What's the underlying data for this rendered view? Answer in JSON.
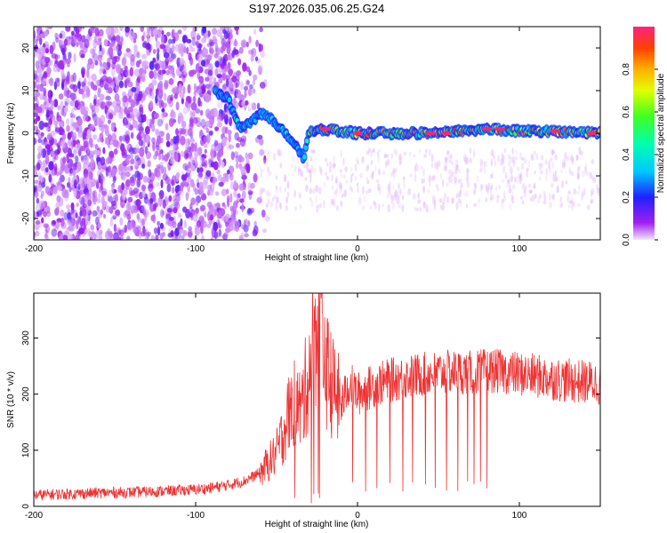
{
  "title": "S197.2026.035.06.25.G24",
  "chart_data": [
    {
      "type": "heatmap",
      "title": "S197.2026.035.06.25.G24",
      "xlabel": "Height of straight line (km)",
      "ylabel": "Frequency (Hz)",
      "xlim": [
        -200,
        150
      ],
      "ylim": [
        -25,
        25
      ],
      "xticks": [
        -200,
        -100,
        0,
        100
      ],
      "xtick_labels": [
        "-200",
        "-100",
        "0",
        "100"
      ],
      "yticks": [
        -20,
        -10,
        0,
        10,
        20
      ],
      "ytick_labels": [
        "-20",
        "-10",
        "0",
        "10",
        "20"
      ],
      "colorbar": {
        "label": "Normalized spectral amplitude",
        "range": [
          0,
          1
        ],
        "ticks": [
          0.0,
          0.2,
          0.4,
          0.6,
          0.8
        ],
        "tick_labels": [
          "0.0",
          "0.2",
          "0.4",
          "0.6",
          "0.8"
        ]
      },
      "ridge": [
        {
          "x": -88,
          "y": 10
        },
        {
          "x": -80,
          "y": 8
        },
        {
          "x": -72,
          "y": 1
        },
        {
          "x": -58,
          "y": 5
        },
        {
          "x": -50,
          "y": 2
        },
        {
          "x": -40,
          "y": -2
        },
        {
          "x": -33,
          "y": -6
        },
        {
          "x": -30,
          "y": 0.5
        },
        {
          "x": -20,
          "y": 1
        },
        {
          "x": -10,
          "y": 0.5
        },
        {
          "x": 0,
          "y": 0
        },
        {
          "x": 20,
          "y": 0
        },
        {
          "x": 40,
          "y": 0
        },
        {
          "x": 60,
          "y": 0.5
        },
        {
          "x": 80,
          "y": 1
        },
        {
          "x": 100,
          "y": 0.5
        },
        {
          "x": 120,
          "y": 0.5
        },
        {
          "x": 150,
          "y": 0
        }
      ],
      "noise_region_x": [
        -200,
        -70
      ]
    },
    {
      "type": "line",
      "xlabel": "Height of straight line (km)",
      "ylabel": "SNR (10 * v/v)",
      "xlim": [
        -200,
        150
      ],
      "ylim": [
        0,
        380
      ],
      "xticks": [
        -200,
        -100,
        0,
        100
      ],
      "xtick_labels": [
        "-200",
        "-100",
        "0",
        "100"
      ],
      "yticks": [
        0,
        100,
        200,
        300
      ],
      "ytick_labels": [
        "0",
        "100",
        "200",
        "300"
      ],
      "series": [
        {
          "name": "SNR",
          "color": "#ee3333",
          "x": [
            -200,
            -180,
            -160,
            -140,
            -120,
            -100,
            -90,
            -80,
            -70,
            -60,
            -50,
            -45,
            -40,
            -35,
            -30,
            -25,
            -22,
            -20,
            -15,
            -10,
            -5,
            0,
            10,
            20,
            30,
            40,
            50,
            60,
            70,
            80,
            90,
            100,
            110,
            120,
            130,
            140,
            150
          ],
          "y": [
            20,
            22,
            24,
            25,
            27,
            30,
            33,
            38,
            45,
            60,
            95,
            140,
            190,
            170,
            240,
            330,
            360,
            250,
            210,
            180,
            220,
            200,
            215,
            225,
            230,
            235,
            238,
            240,
            238,
            242,
            240,
            236,
            232,
            228,
            224,
            222,
            220
          ]
        }
      ],
      "dropouts_x": [
        -3,
        5,
        12,
        20,
        28,
        34,
        42,
        48,
        55,
        62,
        68,
        72,
        76,
        80
      ]
    }
  ]
}
